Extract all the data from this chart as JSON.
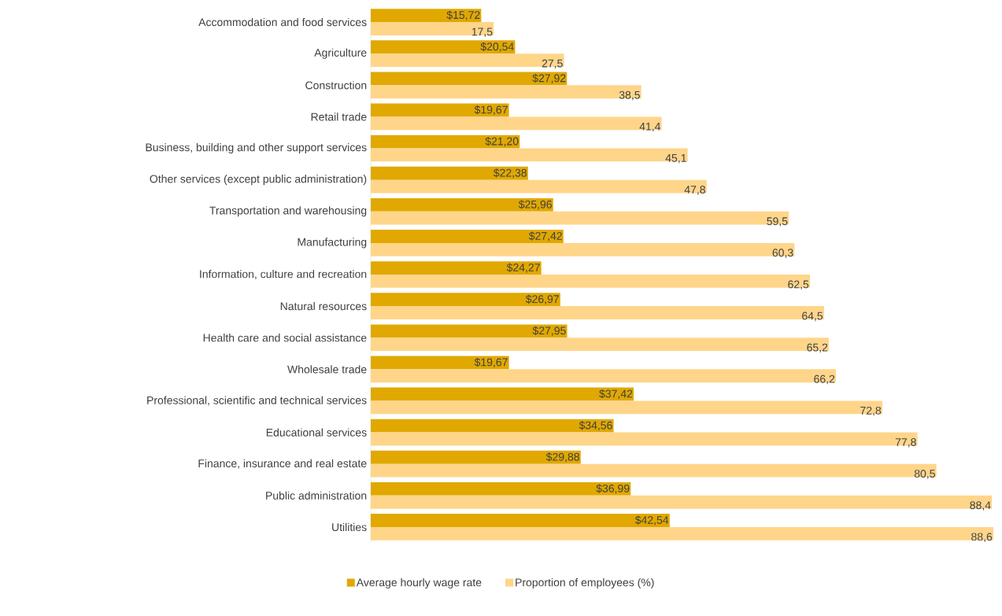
{
  "chart_data": {
    "type": "bar",
    "orientation": "horizontal",
    "legend": "bottom",
    "categories": [
      "Accommodation and food services",
      "Agriculture",
      "Construction",
      "Retail trade",
      "Business, building and other support services",
      "Other services (except public administration)",
      "Transportation and warehousing",
      "Manufacturing",
      "Information, culture and recreation",
      "Natural resources",
      "Health care and social assistance",
      "Wholesale trade",
      "Professional, scientific and technical services",
      "Educational services",
      "Finance, insurance and real estate",
      "Public administration",
      "Utilities"
    ],
    "series": [
      {
        "name": "Average hourly wage rate",
        "color": "#e0a800",
        "values": [
          15.72,
          20.54,
          27.92,
          19.67,
          21.2,
          22.38,
          25.96,
          27.42,
          24.27,
          26.97,
          27.95,
          19.67,
          37.42,
          34.56,
          29.88,
          36.99,
          42.54
        ],
        "value_labels": [
          "$15,72",
          "$20,54",
          "$27,92",
          "$19,67",
          "$21,20",
          "$22,38",
          "$25,96",
          "$27,42",
          "$24,27",
          "$26,97",
          "$27,95",
          "$19,67",
          "$37,42",
          "$34,56",
          "$29,88",
          "$36,99",
          "$42,54"
        ]
      },
      {
        "name": "Proportion of employees (%)",
        "color": "#ffd58a",
        "values": [
          17.5,
          27.5,
          38.5,
          41.4,
          45.1,
          47.8,
          59.5,
          60.3,
          62.5,
          64.5,
          65.2,
          66.2,
          72.8,
          77.8,
          80.5,
          88.4,
          88.6
        ],
        "value_labels": [
          "17,5",
          "27,5",
          "38,5",
          "41,4",
          "45,1",
          "47,8",
          "59,5",
          "60,3",
          "62,5",
          "64,5",
          "65,2",
          "66,2",
          "72,8",
          "77,8",
          "80,5",
          "88,4",
          "88,6"
        ]
      }
    ]
  }
}
